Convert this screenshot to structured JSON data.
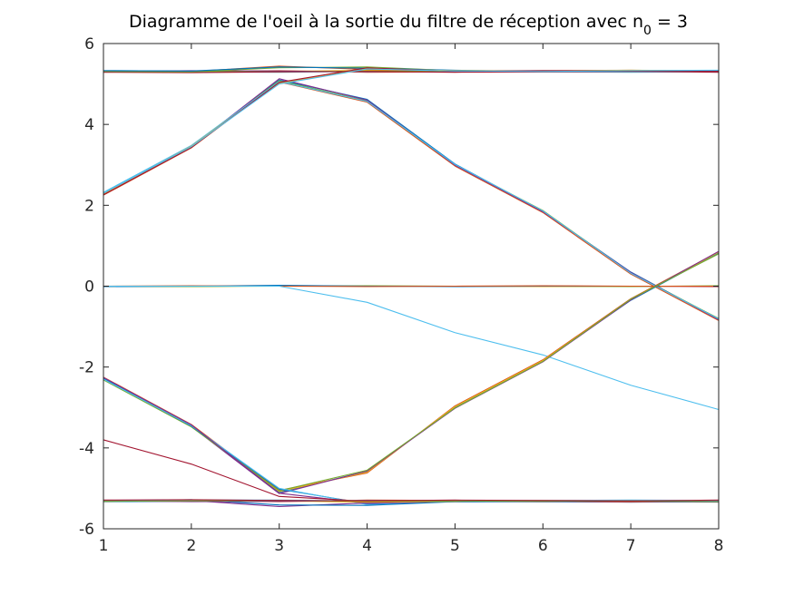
{
  "chart_data": {
    "type": "line",
    "title": "Diagramme de l'oeil à la sortie du filtre de réception avec n",
    "title_subscript": "0",
    "title_suffix": " = 3",
    "xlabel": "",
    "ylabel": "",
    "xlim": [
      1,
      8
    ],
    "ylim": [
      -6,
      6
    ],
    "x_ticks": [
      1,
      2,
      3,
      4,
      5,
      6,
      7,
      8
    ],
    "y_ticks": [
      6,
      4,
      2,
      0,
      -2,
      -4,
      -6
    ],
    "grid": false,
    "legend": "none",
    "x": [
      1,
      2,
      3,
      4,
      5,
      6,
      7,
      8
    ],
    "series": [
      {
        "color": "#0072BD",
        "values": [
          5.33,
          5.32,
          5.3,
          5.32,
          5.33,
          5.33,
          5.32,
          5.33
        ]
      },
      {
        "color": "#D95319",
        "values": [
          5.3,
          5.31,
          5.33,
          5.29,
          5.3,
          5.31,
          5.33,
          5.31
        ]
      },
      {
        "color": "#EDB120",
        "values": [
          5.32,
          5.3,
          5.31,
          5.34,
          5.32,
          5.3,
          5.31,
          5.32
        ]
      },
      {
        "color": "#7E2F8E",
        "values": [
          5.31,
          5.33,
          5.32,
          5.3,
          5.31,
          5.32,
          5.3,
          5.31
        ]
      },
      {
        "color": "#4DBEEE",
        "values": [
          5.3,
          5.3,
          5.29,
          5.31,
          5.3,
          5.3,
          5.29,
          5.3
        ]
      },
      {
        "color": "#77AC30",
        "values": [
          5.32,
          5.31,
          5.3,
          5.32,
          5.31,
          5.32,
          5.31,
          5.33
        ]
      },
      {
        "color": "#A2142F",
        "values": [
          5.29,
          5.28,
          5.3,
          5.31,
          5.29,
          5.3,
          5.31,
          5.29
        ]
      },
      {
        "color": "#D95319",
        "values": [
          5.32,
          5.31,
          5.44,
          5.36,
          5.32,
          5.33,
          5.34,
          5.32
        ]
      },
      {
        "color": "#77AC30",
        "values": [
          5.31,
          5.3,
          5.4,
          5.42,
          5.33,
          5.32,
          5.33,
          5.33
        ]
      },
      {
        "color": "#0072BD",
        "values": [
          5.33,
          5.32,
          5.42,
          5.39,
          5.34,
          5.31,
          5.32,
          5.32
        ]
      },
      {
        "color": "#0072BD",
        "values": [
          2.3,
          3.45,
          5.1,
          4.62,
          3.02,
          1.85,
          0.35,
          -0.82
        ]
      },
      {
        "color": "#D95319",
        "values": [
          2.25,
          3.42,
          5.05,
          4.55,
          2.97,
          1.82,
          0.3,
          -0.85
        ]
      },
      {
        "color": "#77AC30",
        "values": [
          2.28,
          3.47,
          5.08,
          4.58,
          3.0,
          1.87,
          0.33,
          -0.8
        ]
      },
      {
        "color": "#7E2F8E",
        "values": [
          2.27,
          3.44,
          5.13,
          4.6,
          2.99,
          1.84,
          0.34,
          -0.83
        ]
      },
      {
        "color": "#4DBEEE",
        "values": [
          2.32,
          3.48,
          5.06,
          4.57,
          3.01,
          1.86,
          0.32,
          -0.81
        ]
      },
      {
        "color": "#EDB120",
        "values": [
          2.28,
          3.46,
          5.02,
          5.38,
          5.33,
          5.32,
          5.34,
          5.33
        ]
      },
      {
        "color": "#A2142F",
        "values": [
          2.26,
          3.43,
          5.04,
          5.4,
          5.31,
          5.33,
          5.32,
          5.32
        ]
      },
      {
        "color": "#4DBEEE",
        "values": [
          2.3,
          3.45,
          5.0,
          5.37,
          5.32,
          5.31,
          5.33,
          5.34
        ]
      },
      {
        "color": "#EDB120",
        "values": [
          -0.01,
          -0.01,
          0.01,
          0.0,
          0.0,
          -0.01,
          0.0,
          0.0
        ]
      },
      {
        "color": "#77AC30",
        "values": [
          0.0,
          -0.01,
          0.0,
          0.01,
          0.0,
          0.0,
          -0.01,
          0.01
        ]
      },
      {
        "color": "#A2142F",
        "values": [
          0.0,
          0.0,
          0.0,
          0.0,
          0.0,
          0.0,
          0.0,
          -0.01
        ]
      },
      {
        "color": "#0072BD",
        "values": [
          -0.01,
          0.0,
          0.02,
          0.0,
          -0.01,
          0.0,
          0.0,
          0.0
        ]
      },
      {
        "color": "#D95319",
        "values": [
          0.0,
          0.01,
          0.0,
          -0.01,
          0.0,
          0.01,
          0.0,
          0.0
        ]
      },
      {
        "color": "#4DBEEE",
        "values": [
          0.0,
          0.0,
          0.0,
          -0.4,
          -1.15,
          -1.7,
          -2.45,
          -3.05
        ]
      },
      {
        "color": "#0072BD",
        "values": [
          -2.3,
          -3.45,
          -5.1,
          -4.58,
          -3.0,
          -1.85,
          -0.35,
          0.82
        ]
      },
      {
        "color": "#D95319",
        "values": [
          -2.25,
          -3.42,
          -5.05,
          -4.62,
          -2.96,
          -1.82,
          -0.31,
          0.85
        ]
      },
      {
        "color": "#EDB120",
        "values": [
          -2.28,
          -3.44,
          -5.08,
          -4.6,
          -2.98,
          -1.84,
          -0.33,
          0.84
        ]
      },
      {
        "color": "#7E2F8E",
        "values": [
          -2.27,
          -3.47,
          -5.13,
          -4.57,
          -3.02,
          -1.87,
          -0.34,
          0.86
        ]
      },
      {
        "color": "#77AC30",
        "values": [
          -2.32,
          -3.48,
          -5.06,
          -4.55,
          -3.01,
          -1.86,
          -0.32,
          0.8
        ]
      },
      {
        "color": "#0072BD",
        "values": [
          -2.28,
          -3.46,
          -5.02,
          -5.38,
          -5.33,
          -5.32,
          -5.34,
          -5.33
        ]
      },
      {
        "color": "#4DBEEE",
        "values": [
          -2.3,
          -3.45,
          -5.0,
          -5.4,
          -5.31,
          -5.33,
          -5.32,
          -5.32
        ]
      },
      {
        "color": "#7E2F8E",
        "values": [
          -2.26,
          -3.43,
          -5.12,
          -5.37,
          -5.32,
          -5.31,
          -5.33,
          -5.34
        ]
      },
      {
        "color": "#A2142F",
        "values": [
          -3.8,
          -4.4,
          -5.2,
          -5.32,
          -5.33,
          -5.33,
          -5.32,
          -5.33
        ]
      },
      {
        "color": "#7E2F8E",
        "values": [
          -5.33,
          -5.3,
          -5.45,
          -5.36,
          -5.32,
          -5.33,
          -5.34,
          -5.32
        ]
      },
      {
        "color": "#0072BD",
        "values": [
          -5.31,
          -5.28,
          -5.41,
          -5.42,
          -5.33,
          -5.32,
          -5.33,
          -5.33
        ]
      },
      {
        "color": "#0072BD",
        "values": [
          -5.33,
          -5.32,
          -5.3,
          -5.32,
          -5.33,
          -5.33,
          -5.32,
          -5.33
        ]
      },
      {
        "color": "#D95319",
        "values": [
          -5.3,
          -5.31,
          -5.33,
          -5.29,
          -5.3,
          -5.31,
          -5.33,
          -5.31
        ]
      },
      {
        "color": "#EDB120",
        "values": [
          -5.32,
          -5.3,
          -5.31,
          -5.34,
          -5.32,
          -5.3,
          -5.31,
          -5.32
        ]
      },
      {
        "color": "#7E2F8E",
        "values": [
          -5.31,
          -5.33,
          -5.32,
          -5.3,
          -5.31,
          -5.32,
          -5.3,
          -5.31
        ]
      },
      {
        "color": "#4DBEEE",
        "values": [
          -5.3,
          -5.29,
          -5.29,
          -5.31,
          -5.3,
          -5.3,
          -5.29,
          -5.3
        ]
      },
      {
        "color": "#77AC30",
        "values": [
          -5.32,
          -5.31,
          -5.3,
          -5.32,
          -5.31,
          -5.32,
          -5.31,
          -5.33
        ]
      },
      {
        "color": "#A2142F",
        "values": [
          -5.29,
          -5.28,
          -5.3,
          -5.31,
          -5.29,
          -5.3,
          -5.31,
          -5.29
        ]
      }
    ]
  }
}
